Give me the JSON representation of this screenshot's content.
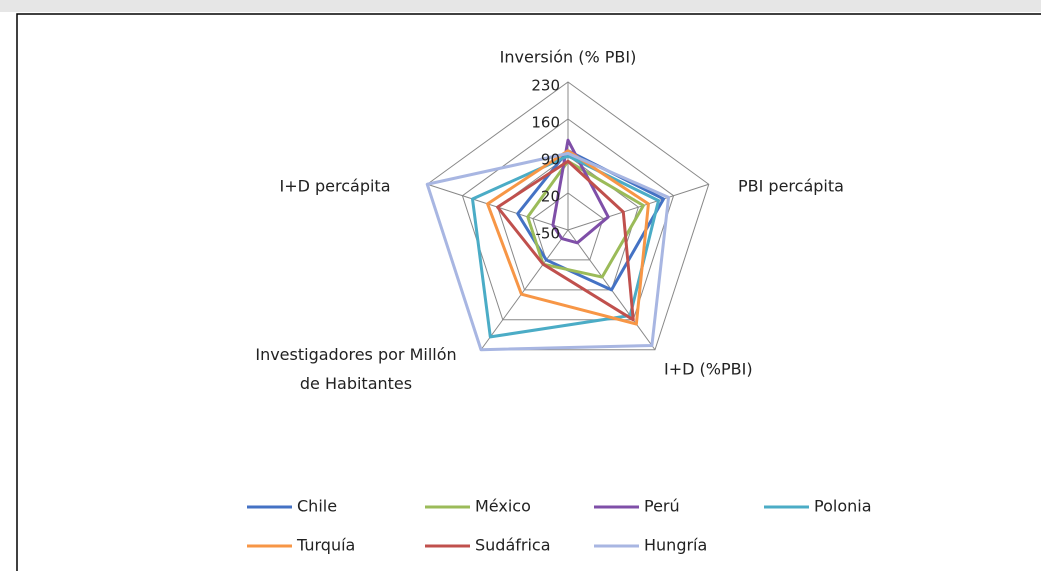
{
  "chart_data": {
    "type": "radar",
    "categories": [
      "Inversión (% PBI)",
      "PBI percápita",
      "I+D (%PBI)",
      "Investigadores por Millón de Habitantes",
      "I+D percápita"
    ],
    "ylim": [
      -50,
      230
    ],
    "yticks": [
      -50,
      20,
      90,
      160,
      230
    ],
    "grid": true,
    "series": [
      {
        "name": "Chile",
        "color": "#4472c4",
        "values": [
          100,
          140,
          90,
          20,
          50
        ]
      },
      {
        "name": "México",
        "color": "#9bbb59",
        "values": [
          80,
          100,
          60,
          30,
          30
        ]
      },
      {
        "name": "Perú",
        "color": "#7f4fa8",
        "values": [
          120,
          30,
          -20,
          -30,
          -20
        ]
      },
      {
        "name": "Polonia",
        "color": "#4bacc6",
        "values": [
          90,
          130,
          150,
          200,
          140
        ]
      },
      {
        "name": "Turquía",
        "color": "#f79646",
        "values": [
          100,
          110,
          170,
          100,
          110
        ]
      },
      {
        "name": "Sudáfrica",
        "color": "#c0504d",
        "values": [
          80,
          60,
          160,
          30,
          90
        ]
      },
      {
        "name": "Hungría",
        "color": "#a8b6e2",
        "values": [
          95,
          150,
          220,
          230,
          230
        ]
      }
    ]
  }
}
